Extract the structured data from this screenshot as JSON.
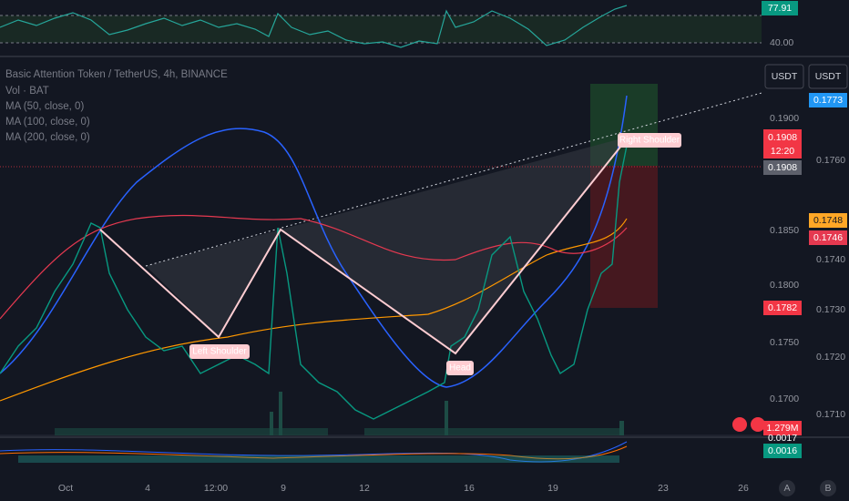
{
  "rsi": {
    "value_badge": "77.91",
    "level": "40.00"
  },
  "header": {
    "symbol": "Basic Attention Token / TetherUS, 4h, BINANCE",
    "indicators": [
      "Vol · BAT",
      "MA (50, close, 0)",
      "MA (100, close, 0)",
      "MA (200, close, 0)"
    ]
  },
  "currency_buttons": [
    "USDT",
    "USDT"
  ],
  "left_axis": [
    "0.1900",
    "0.1850",
    "0.1800",
    "0.1750",
    "0.1700"
  ],
  "right_axis": [
    "0.1760",
    "0.1740",
    "0.1730",
    "0.1720",
    "0.1710"
  ],
  "badges": [
    "0.1773",
    "0.1908",
    "12:20",
    "0.1908",
    "0.1748",
    "0.1746",
    "0.1782",
    "1.279M",
    "0.0017",
    "0.0016"
  ],
  "annotations": [
    "Left Shoulder",
    "Head",
    "Right Shoulder"
  ],
  "time_axis": [
    "Oct",
    "4",
    "12:00",
    "9",
    "12",
    "16",
    "19",
    "23",
    "26"
  ],
  "scale_buttons": [
    "A",
    "B"
  ]
}
